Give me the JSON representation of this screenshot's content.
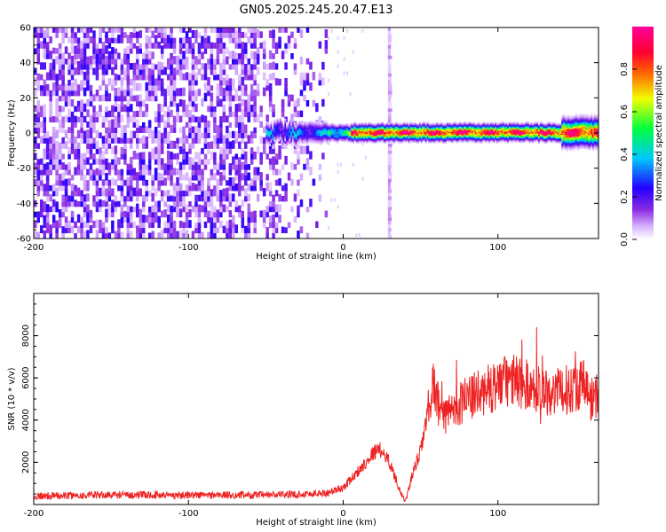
{
  "figure_title": "GN05.2025.245.20.47.E13",
  "chart_data": [
    {
      "type": "heatmap",
      "title": "GN05.2025.245.20.47.E13",
      "xlabel": "Height of straight line (km)",
      "ylabel": "Frequency (Hz)",
      "xlim": [
        -200,
        165
      ],
      "ylim": [
        -60,
        60
      ],
      "xticks": [
        -200,
        -100,
        0,
        100
      ],
      "yticks": [
        -60,
        -40,
        -20,
        0,
        20,
        40,
        60
      ],
      "colorbar": {
        "label": "Normalized spectral amplitude",
        "range": [
          0.0,
          1.0
        ],
        "ticks": [
          "0.0",
          "0.2",
          "0.4",
          "0.6",
          "0.8"
        ],
        "colormap": [
          "#ffffff",
          "#d8b4ff",
          "#8a2be2",
          "#2200ff",
          "#00c8ff",
          "#00ff40",
          "#f0ff00",
          "#ff6600",
          "#ff0033",
          "#ff0099"
        ]
      },
      "regions": [
        {
          "name": "noise",
          "x_range": [
            -200,
            -10
          ],
          "freq_range": [
            -60,
            60
          ],
          "amplitude": 0.1
        },
        {
          "name": "vertical stripe",
          "x": 30,
          "freq_range": [
            -60,
            60
          ],
          "amplitude": 0.05
        },
        {
          "name": "signal band",
          "x_range": [
            -50,
            165
          ],
          "center_freq": 0,
          "halfwidth_hz": 3,
          "amplitude": 0.9
        }
      ]
    },
    {
      "type": "line",
      "xlabel": "Height of straight line (km)",
      "ylabel": "SNR (10 * v/v)",
      "xlim": [
        -200,
        165
      ],
      "ylim": [
        0,
        10000
      ],
      "xticks": [
        -200,
        -100,
        0,
        100
      ],
      "yticks": [
        2000,
        4000,
        6000,
        8000
      ],
      "color": "#ee2222",
      "series": [
        {
          "x": [
            -200,
            -150,
            -100,
            -50,
            -20,
            -10,
            0,
            10,
            20,
            25,
            30,
            35,
            40,
            45,
            50,
            55,
            58,
            60,
            65,
            70,
            80,
            90,
            100,
            110,
            120,
            130,
            140,
            150,
            155,
            160,
            165
          ],
          "values": [
            400,
            450,
            450,
            450,
            500,
            550,
            800,
            1600,
            2500,
            2600,
            2000,
            1000,
            100,
            1500,
            2500,
            4500,
            5800,
            5000,
            4000,
            4600,
            5000,
            5300,
            5700,
            5900,
            5600,
            5400,
            5300,
            5600,
            5800,
            5000,
            5200
          ]
        }
      ]
    }
  ]
}
